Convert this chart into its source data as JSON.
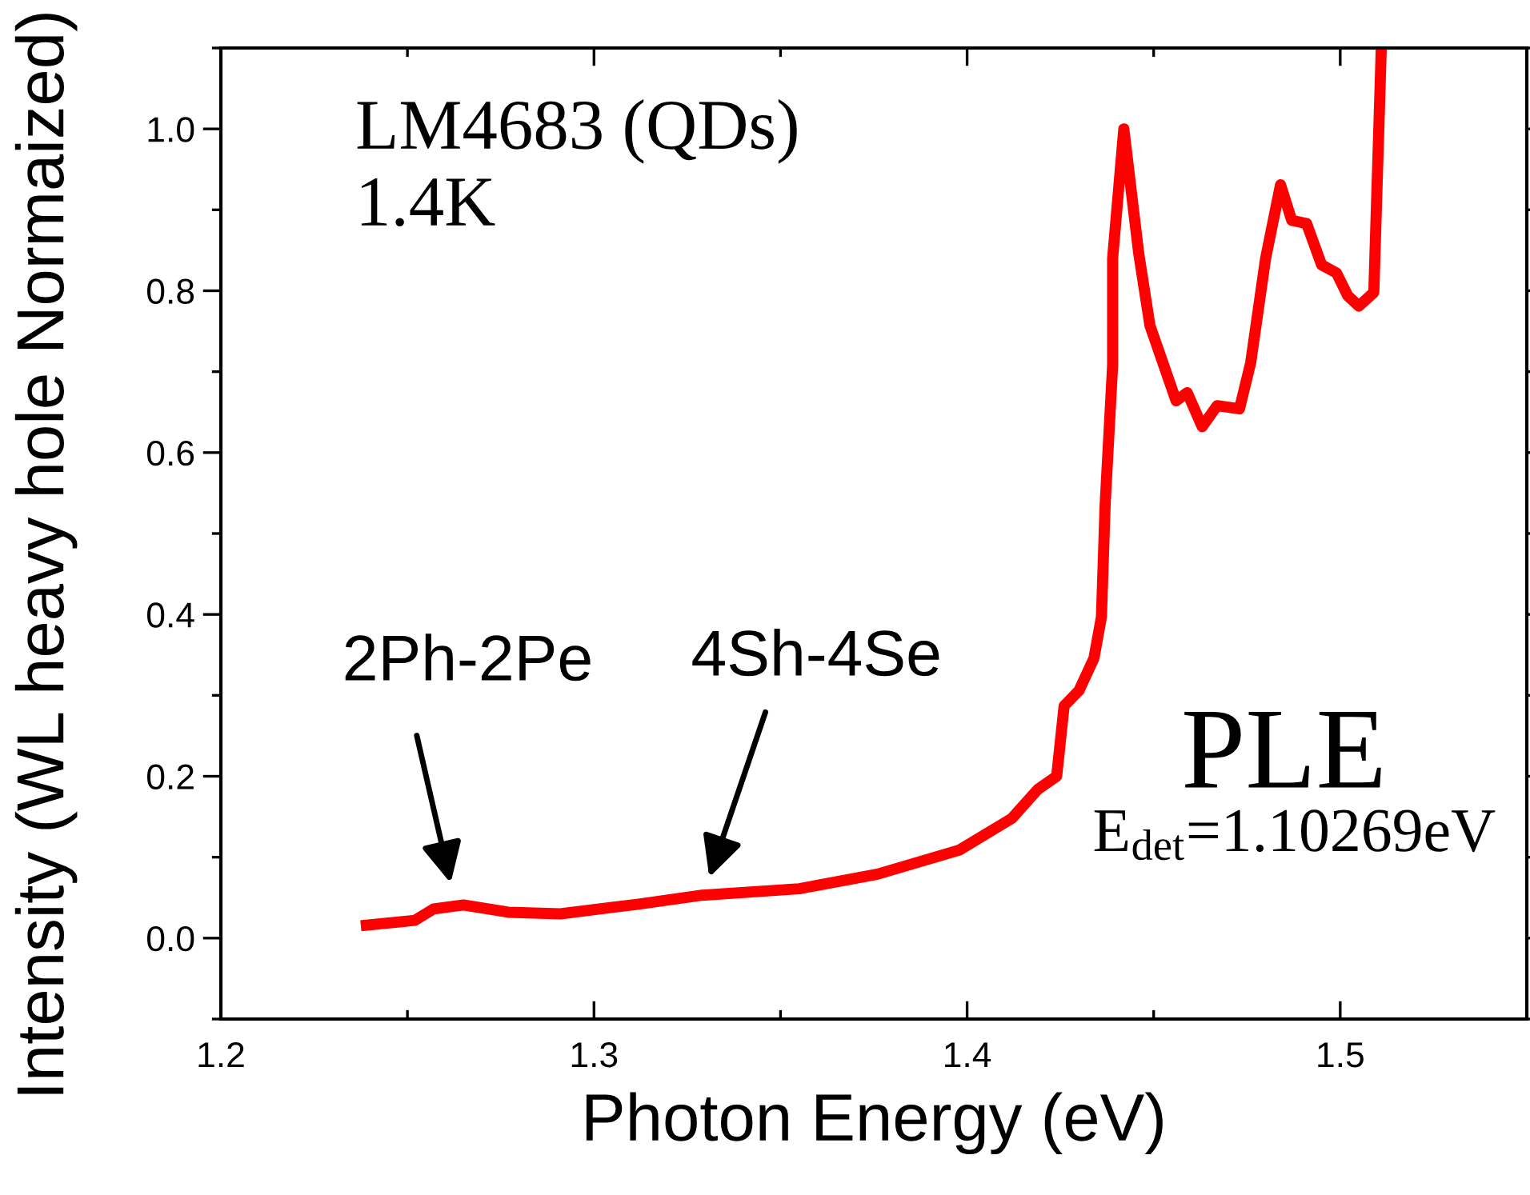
{
  "chart_data": {
    "type": "line",
    "xlabel": "Photon Energy (eV)",
    "ylabel": "Intensity (WL heavy hole Normaized)",
    "xlim": [
      1.2,
      1.55
    ],
    "xticks": [
      1.2,
      1.3,
      1.4,
      1.5
    ],
    "ylim": [
      -0.1,
      1.1
    ],
    "yticks": [
      {
        "value": 0,
        "label": "0.0"
      },
      0.2,
      0.4,
      0.6,
      0.8,
      {
        "value": 1,
        "label": "1.0"
      }
    ],
    "grid": false,
    "legend": false,
    "marker": "none",
    "line_style": "solid",
    "series": [
      {
        "color": "#ff0000",
        "x": [
          1.239,
          1.252,
          1.257,
          1.265,
          1.277,
          1.291,
          1.312,
          1.329,
          1.355,
          1.376,
          1.398,
          1.412,
          1.419,
          1.424,
          1.426,
          1.43,
          1.434,
          1.436,
          1.437,
          1.439,
          1.439,
          1.442,
          1.446,
          1.449,
          1.456,
          1.459,
          1.463,
          1.467,
          1.473,
          1.476,
          1.48,
          1.484,
          1.487,
          1.491,
          1.495,
          1.499,
          1.502,
          1.505,
          1.509,
          1.511
        ],
        "values": [
          0.016,
          0.022,
          0.036,
          0.041,
          0.032,
          0.03,
          0.042,
          0.053,
          0.061,
          0.079,
          0.109,
          0.148,
          0.184,
          0.2,
          0.287,
          0.306,
          0.346,
          0.397,
          0.536,
          0.708,
          0.84,
          1.0,
          0.846,
          0.757,
          0.664,
          0.674,
          0.632,
          0.658,
          0.654,
          0.711,
          0.84,
          0.931,
          0.887,
          0.883,
          0.832,
          0.822,
          0.794,
          0.781,
          0.798,
          1.1
        ]
      }
    ],
    "annotations": [
      "LM4683 (QDs)",
      "1.4K",
      "PLE",
      "E$_{det}$=1.10269eV",
      "2Ph-2Pe",
      "4Sh-4Se"
    ]
  }
}
